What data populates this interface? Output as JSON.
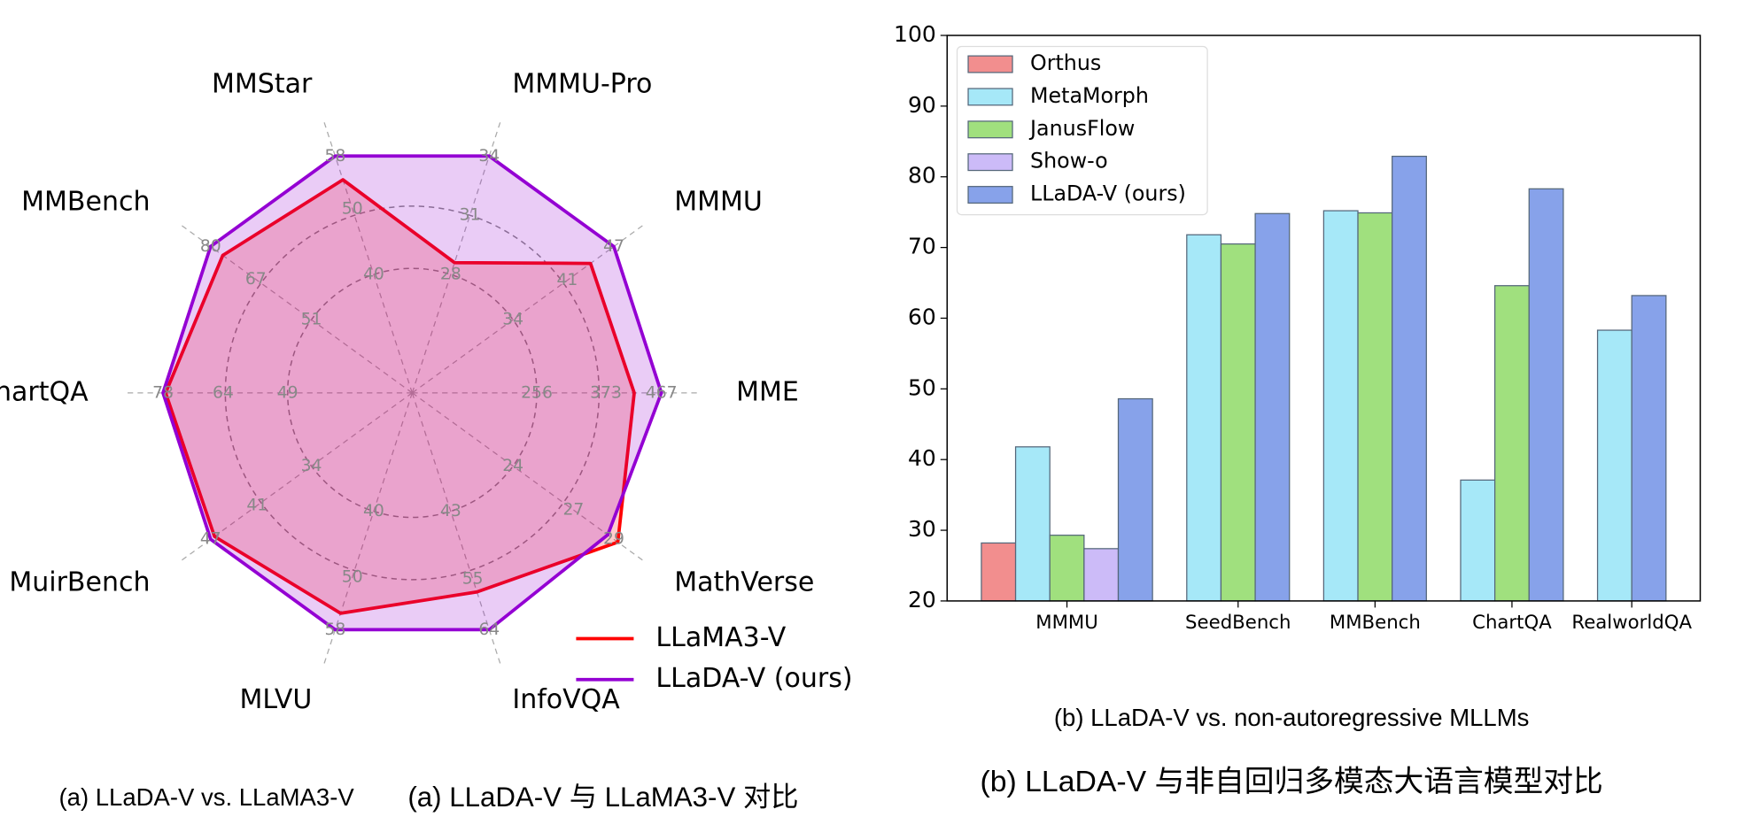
{
  "chart_data": [
    {
      "type": "radar",
      "axes": [
        {
          "name": "MME",
          "ticks": [
            256,
            373,
            467
          ],
          "rlim": [
            45,
            467
          ]
        },
        {
          "name": "MMMU",
          "ticks": [
            34,
            41,
            47
          ],
          "rlim": [
            21,
            47
          ]
        },
        {
          "name": "MMMU-Pro",
          "ticks": [
            28,
            31,
            34
          ],
          "rlim": [
            22,
            34
          ]
        },
        {
          "name": "MMStar",
          "ticks": [
            40,
            50,
            58
          ],
          "rlim": [
            22,
            58
          ]
        },
        {
          "name": "MMBench",
          "ticks": [
            51,
            67,
            80
          ],
          "rlim": [
            22,
            80
          ]
        },
        {
          "name": "ChartQA",
          "ticks": [
            49,
            64,
            78
          ],
          "rlim": [
            20,
            78
          ]
        },
        {
          "name": "MuirBench",
          "ticks": [
            34,
            41,
            47
          ],
          "rlim": [
            21,
            47
          ]
        },
        {
          "name": "MLVU",
          "ticks": [
            40,
            50,
            58
          ],
          "rlim": [
            22,
            58
          ]
        },
        {
          "name": "InfoVQA",
          "ticks": [
            43,
            55,
            64
          ],
          "rlim": [
            22,
            64
          ]
        },
        {
          "name": "MathVerse",
          "ticks": [
            24,
            27,
            29
          ],
          "rlim": [
            19,
            29
          ]
        }
      ],
      "series": [
        {
          "name": "LLaMA3-V",
          "color": "#ff0000",
          "values": [
            421,
            44,
            28.6,
            54.4,
            76.5,
            77.4,
            46.5,
            55.5,
            57.3,
            29.2
          ]
        },
        {
          "name": "LLaDA-V (ours)",
          "color": "#9400d3",
          "values": [
            467,
            47,
            34,
            58,
            80,
            78,
            47,
            58,
            64,
            28.7
          ]
        }
      ],
      "legend": "lower right",
      "captions": [
        "(a) LLaDA-V vs. LLaMA3-V",
        "(a) LLaDA-V 与 LLaMA3-V 对比"
      ]
    },
    {
      "type": "bar",
      "categories": [
        "MMMU",
        "SeedBench",
        "MMBench",
        "ChartQA",
        "RealworldQA"
      ],
      "series": [
        {
          "name": "Orthus",
          "color": "#f28e8e",
          "values": [
            28.2,
            null,
            null,
            null,
            null
          ]
        },
        {
          "name": "MetaMorph",
          "color": "#a6e8f8",
          "values": [
            41.8,
            71.8,
            75.2,
            37.1,
            58.3
          ]
        },
        {
          "name": "JanusFlow",
          "color": "#a0e07e",
          "values": [
            29.3,
            70.5,
            74.9,
            64.6,
            null
          ]
        },
        {
          "name": "Show-o",
          "color": "#ccbbf8",
          "values": [
            27.4,
            null,
            null,
            null,
            null
          ]
        },
        {
          "name": "LLaDA-V (ours)",
          "color": "#87a2ea",
          "values": [
            48.6,
            74.8,
            82.9,
            78.3,
            63.2
          ]
        }
      ],
      "ylim": [
        20,
        100
      ],
      "yticks": [
        20,
        30,
        40,
        50,
        60,
        70,
        80,
        90,
        100
      ],
      "legend": "upper left",
      "captions": [
        "(b) LLaDA-V vs. non-autoregressive MLLMs",
        "(b) LLaDA-V 与非自回归多模态大语言模型对比"
      ]
    }
  ]
}
